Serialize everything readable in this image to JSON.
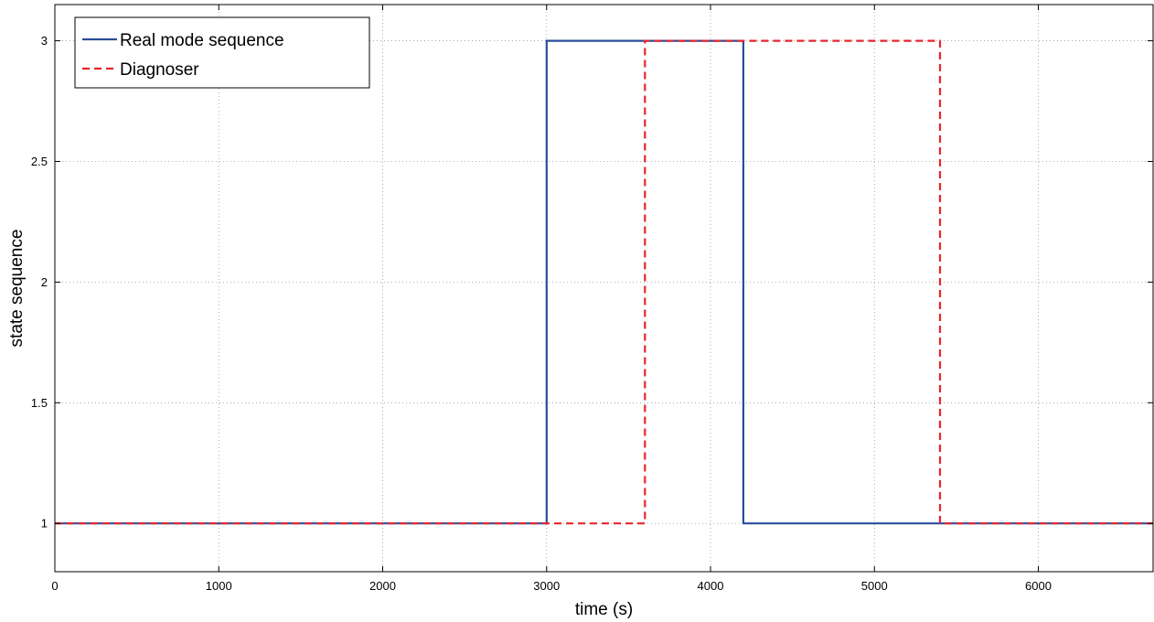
{
  "chart_data": {
    "type": "line",
    "title": "",
    "xlabel": "time (s)",
    "ylabel": "state sequence",
    "xlim": [
      0,
      6700
    ],
    "ylim": [
      0.8,
      3.15
    ],
    "xticks": [
      0,
      1000,
      2000,
      3000,
      4000,
      5000,
      6000
    ],
    "xtick_labels": [
      "0",
      "1000",
      "2000",
      "3000",
      "4000",
      "5000",
      "6000"
    ],
    "yticks": [
      1,
      1.5,
      2,
      2.5,
      3
    ],
    "ytick_labels": [
      "1",
      "1.5",
      "2",
      "2.5",
      "3"
    ],
    "grid": true,
    "legend_position": "top-left",
    "series": [
      {
        "name": "Real mode sequence",
        "color": "#2b4d9b",
        "style": "solid",
        "x": [
          0,
          3000,
          3000,
          4200,
          4200,
          6700
        ],
        "y": [
          1,
          1,
          3,
          3,
          1,
          1
        ]
      },
      {
        "name": "Diagnoser",
        "color": "#e8252b",
        "style": "dashed",
        "x": [
          0,
          3600,
          3600,
          5400,
          5400,
          6700
        ],
        "y": [
          1,
          1,
          3,
          3,
          1,
          1
        ]
      }
    ]
  }
}
